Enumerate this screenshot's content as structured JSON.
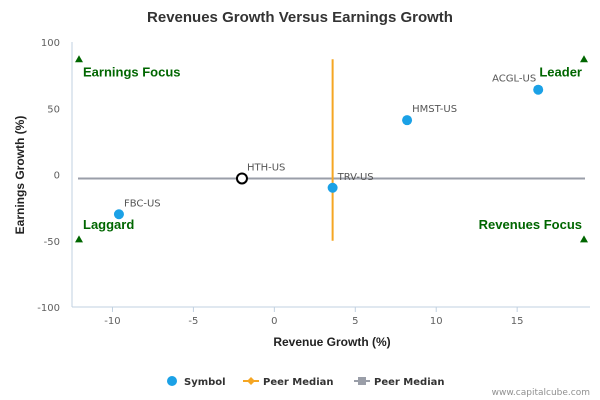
{
  "chart_data": {
    "type": "scatter",
    "title": "Revenues Growth Versus Earnings Growth",
    "xlabel": "Revenue Growth (%)",
    "ylabel": "Earnings Growth (%)",
    "xlim": [
      -12.5,
      19.5
    ],
    "ylim": [
      -100,
      100
    ],
    "x_ticks": [
      -10,
      -5,
      0,
      5,
      10,
      15
    ],
    "y_ticks": [
      100,
      50,
      0,
      -50,
      -100
    ],
    "grid": false,
    "legend_position": "bottom-center",
    "colors": {
      "symbol": "#1ba1e6",
      "peer_median_revenue": "#f5a623",
      "peer_median_earnings": "#9a9ea8",
      "quadrant_label": "#006600",
      "highlight_stroke": "#000000"
    },
    "points": [
      {
        "label": "ACGL-US",
        "x": 16.3,
        "y": 64
      },
      {
        "label": "HMST-US",
        "x": 8.2,
        "y": 41
      },
      {
        "label": "HTH-US",
        "x": -2.0,
        "y": -3,
        "highlight": true
      },
      {
        "label": "TRV-US",
        "x": 3.6,
        "y": -10
      },
      {
        "label": "FBC-US",
        "x": -9.6,
        "y": -30
      }
    ],
    "peer_median": {
      "x": 3.6,
      "y": -3,
      "x_line_range": [
        -50,
        87
      ]
    },
    "quadrants": [
      {
        "label": "Earnings Focus",
        "position": "top-left"
      },
      {
        "label": "Leader",
        "position": "top-right"
      },
      {
        "label": "Laggard",
        "position": "bottom-left"
      },
      {
        "label": "Revenues Focus",
        "position": "bottom-right"
      }
    ],
    "legend": [
      {
        "label": "Symbol",
        "marker": "circle",
        "color": "#1ba1e6"
      },
      {
        "label": "Peer Median",
        "marker": "diamond-line",
        "color": "#f5a623"
      },
      {
        "label": "Peer Median",
        "marker": "square-line",
        "color": "#9a9ea8"
      }
    ]
  },
  "credit": "www.capitalcube.com"
}
